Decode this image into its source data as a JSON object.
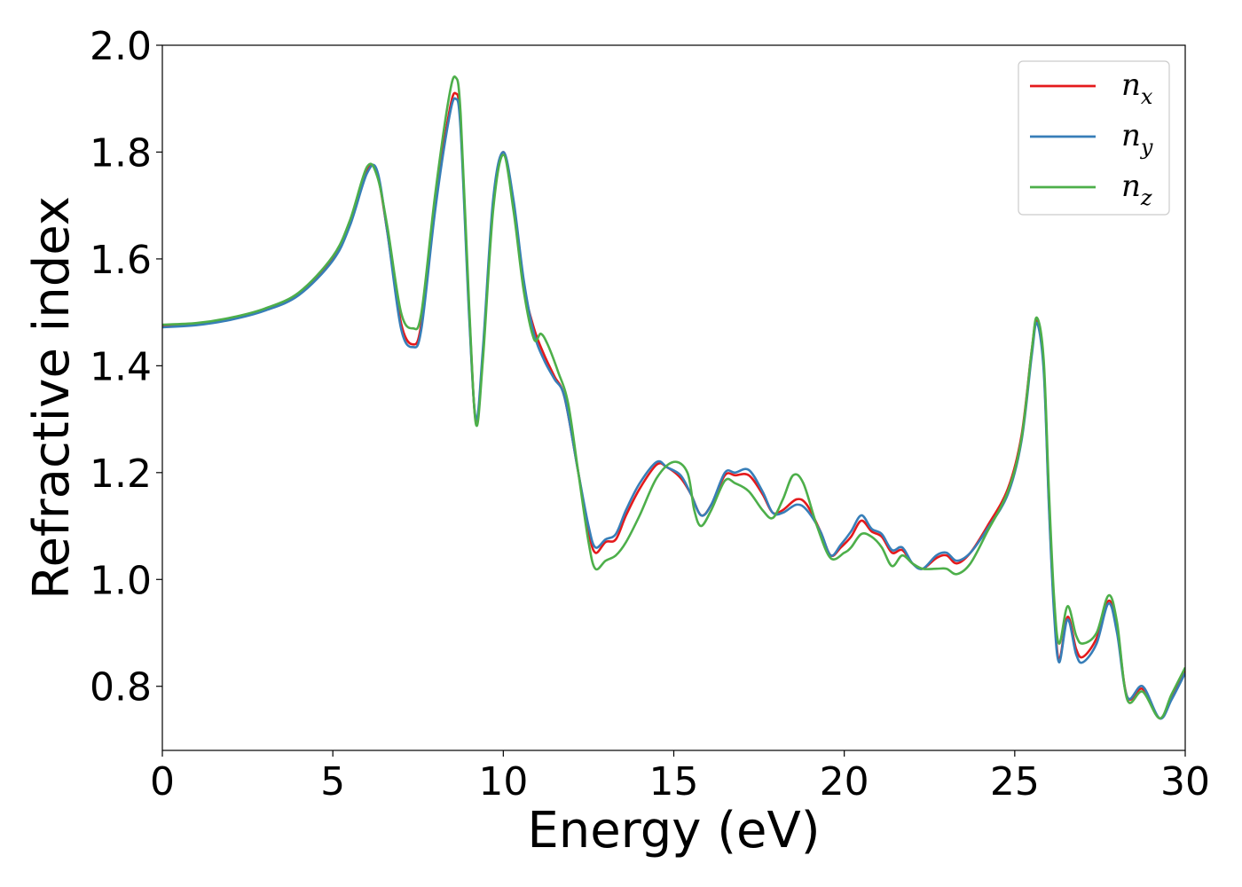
{
  "chart_data": {
    "type": "line",
    "title": "",
    "xlabel": "Energy (eV)",
    "ylabel": "Refractive index",
    "xlim": [
      0,
      30
    ],
    "ylim": [
      0.68,
      2.0
    ],
    "xticks": [
      0,
      5,
      10,
      15,
      20,
      25,
      30
    ],
    "yticks": [
      0.8,
      1.0,
      1.2,
      1.4,
      1.6,
      1.8,
      2.0
    ],
    "xtick_labels": [
      "0",
      "5",
      "10",
      "15",
      "20",
      "25",
      "30"
    ],
    "ytick_labels": [
      "0.8",
      "1.0",
      "1.2",
      "1.4",
      "1.6",
      "1.8",
      "2.0"
    ],
    "grid": false,
    "legend_position": "top-right",
    "series": [
      {
        "name": "n_x",
        "legend_main": "n",
        "legend_sub": "x",
        "color": "#e41a1c",
        "points": [
          [
            0,
            1.474
          ],
          [
            1,
            1.478
          ],
          [
            2,
            1.488
          ],
          [
            3,
            1.505
          ],
          [
            4,
            1.535
          ],
          [
            5,
            1.6
          ],
          [
            5.5,
            1.665
          ],
          [
            6,
            1.765
          ],
          [
            6.3,
            1.76
          ],
          [
            6.6,
            1.65
          ],
          [
            7,
            1.48
          ],
          [
            7.35,
            1.44
          ],
          [
            7.6,
            1.48
          ],
          [
            8.0,
            1.7
          ],
          [
            8.4,
            1.87
          ],
          [
            8.6,
            1.91
          ],
          [
            8.75,
            1.85
          ],
          [
            9.0,
            1.5
          ],
          [
            9.2,
            1.295
          ],
          [
            9.4,
            1.42
          ],
          [
            9.7,
            1.7
          ],
          [
            10.0,
            1.8
          ],
          [
            10.3,
            1.7
          ],
          [
            10.6,
            1.55
          ],
          [
            10.9,
            1.47
          ],
          [
            11.2,
            1.42
          ],
          [
            11.5,
            1.38
          ],
          [
            11.8,
            1.34
          ],
          [
            12.2,
            1.2
          ],
          [
            12.5,
            1.09
          ],
          [
            12.7,
            1.05
          ],
          [
            13.0,
            1.07
          ],
          [
            13.3,
            1.075
          ],
          [
            13.6,
            1.12
          ],
          [
            14.0,
            1.17
          ],
          [
            14.5,
            1.215
          ],
          [
            14.8,
            1.21
          ],
          [
            15.2,
            1.19
          ],
          [
            15.5,
            1.16
          ],
          [
            15.8,
            1.12
          ],
          [
            16.1,
            1.14
          ],
          [
            16.5,
            1.195
          ],
          [
            16.8,
            1.195
          ],
          [
            17.2,
            1.195
          ],
          [
            17.6,
            1.16
          ],
          [
            17.9,
            1.125
          ],
          [
            18.2,
            1.13
          ],
          [
            18.6,
            1.15
          ],
          [
            18.9,
            1.14
          ],
          [
            19.3,
            1.09
          ],
          [
            19.6,
            1.045
          ],
          [
            19.9,
            1.06
          ],
          [
            20.2,
            1.08
          ],
          [
            20.5,
            1.11
          ],
          [
            20.8,
            1.09
          ],
          [
            21.1,
            1.08
          ],
          [
            21.4,
            1.05
          ],
          [
            21.7,
            1.055
          ],
          [
            22.0,
            1.03
          ],
          [
            22.3,
            1.02
          ],
          [
            22.7,
            1.04
          ],
          [
            23.0,
            1.045
          ],
          [
            23.3,
            1.03
          ],
          [
            23.7,
            1.05
          ],
          [
            24.2,
            1.1
          ],
          [
            24.8,
            1.17
          ],
          [
            25.2,
            1.27
          ],
          [
            25.5,
            1.43
          ],
          [
            25.65,
            1.485
          ],
          [
            25.85,
            1.4
          ],
          [
            26.0,
            1.15
          ],
          [
            26.15,
            0.95
          ],
          [
            26.3,
            0.85
          ],
          [
            26.55,
            0.93
          ],
          [
            26.8,
            0.87
          ],
          [
            27.0,
            0.855
          ],
          [
            27.4,
            0.89
          ],
          [
            27.75,
            0.96
          ],
          [
            28.0,
            0.91
          ],
          [
            28.3,
            0.78
          ],
          [
            28.75,
            0.795
          ],
          [
            29.25,
            0.74
          ],
          [
            29.6,
            0.78
          ],
          [
            30,
            0.83
          ]
        ]
      },
      {
        "name": "n_y",
        "legend_main": "n",
        "legend_sub": "y",
        "color": "#377eb8",
        "points": [
          [
            0,
            1.472
          ],
          [
            1,
            1.476
          ],
          [
            2,
            1.486
          ],
          [
            3,
            1.503
          ],
          [
            4,
            1.532
          ],
          [
            5,
            1.597
          ],
          [
            5.5,
            1.662
          ],
          [
            6,
            1.76
          ],
          [
            6.3,
            1.765
          ],
          [
            6.6,
            1.65
          ],
          [
            7,
            1.47
          ],
          [
            7.35,
            1.435
          ],
          [
            7.6,
            1.47
          ],
          [
            8.0,
            1.69
          ],
          [
            8.4,
            1.86
          ],
          [
            8.6,
            1.9
          ],
          [
            8.75,
            1.84
          ],
          [
            9.0,
            1.49
          ],
          [
            9.2,
            1.3
          ],
          [
            9.4,
            1.43
          ],
          [
            9.7,
            1.71
          ],
          [
            10.0,
            1.8
          ],
          [
            10.3,
            1.71
          ],
          [
            10.6,
            1.56
          ],
          [
            10.9,
            1.46
          ],
          [
            11.2,
            1.41
          ],
          [
            11.5,
            1.375
          ],
          [
            11.8,
            1.34
          ],
          [
            12.2,
            1.2
          ],
          [
            12.5,
            1.1
          ],
          [
            12.7,
            1.06
          ],
          [
            13.0,
            1.075
          ],
          [
            13.3,
            1.085
          ],
          [
            13.6,
            1.13
          ],
          [
            14.0,
            1.18
          ],
          [
            14.5,
            1.22
          ],
          [
            14.8,
            1.21
          ],
          [
            15.2,
            1.195
          ],
          [
            15.5,
            1.16
          ],
          [
            15.8,
            1.12
          ],
          [
            16.1,
            1.14
          ],
          [
            16.5,
            1.2
          ],
          [
            16.8,
            1.2
          ],
          [
            17.2,
            1.205
          ],
          [
            17.6,
            1.165
          ],
          [
            17.9,
            1.125
          ],
          [
            18.2,
            1.125
          ],
          [
            18.6,
            1.14
          ],
          [
            18.9,
            1.13
          ],
          [
            19.3,
            1.09
          ],
          [
            19.6,
            1.045
          ],
          [
            19.9,
            1.065
          ],
          [
            20.2,
            1.09
          ],
          [
            20.5,
            1.12
          ],
          [
            20.8,
            1.095
          ],
          [
            21.1,
            1.085
          ],
          [
            21.4,
            1.055
          ],
          [
            21.7,
            1.06
          ],
          [
            22.0,
            1.03
          ],
          [
            22.3,
            1.02
          ],
          [
            22.7,
            1.045
          ],
          [
            23.0,
            1.05
          ],
          [
            23.3,
            1.035
          ],
          [
            23.7,
            1.05
          ],
          [
            24.2,
            1.095
          ],
          [
            24.8,
            1.16
          ],
          [
            25.2,
            1.26
          ],
          [
            25.5,
            1.42
          ],
          [
            25.65,
            1.48
          ],
          [
            25.85,
            1.39
          ],
          [
            26.0,
            1.14
          ],
          [
            26.15,
            0.94
          ],
          [
            26.3,
            0.845
          ],
          [
            26.55,
            0.925
          ],
          [
            26.8,
            0.86
          ],
          [
            27.0,
            0.845
          ],
          [
            27.4,
            0.88
          ],
          [
            27.75,
            0.955
          ],
          [
            28.0,
            0.9
          ],
          [
            28.3,
            0.78
          ],
          [
            28.75,
            0.8
          ],
          [
            29.25,
            0.74
          ],
          [
            29.6,
            0.775
          ],
          [
            30,
            0.825
          ]
        ]
      },
      {
        "name": "n_z",
        "legend_main": "n",
        "legend_sub": "z",
        "color": "#4daf4a",
        "points": [
          [
            0,
            1.477
          ],
          [
            1,
            1.48
          ],
          [
            2,
            1.49
          ],
          [
            3,
            1.507
          ],
          [
            4,
            1.537
          ],
          [
            5,
            1.605
          ],
          [
            5.5,
            1.672
          ],
          [
            6,
            1.772
          ],
          [
            6.3,
            1.755
          ],
          [
            6.6,
            1.66
          ],
          [
            7,
            1.5
          ],
          [
            7.35,
            1.47
          ],
          [
            7.6,
            1.5
          ],
          [
            8.0,
            1.72
          ],
          [
            8.4,
            1.9
          ],
          [
            8.6,
            1.94
          ],
          [
            8.75,
            1.87
          ],
          [
            9.0,
            1.51
          ],
          [
            9.2,
            1.29
          ],
          [
            9.4,
            1.41
          ],
          [
            9.7,
            1.69
          ],
          [
            10.0,
            1.795
          ],
          [
            10.3,
            1.69
          ],
          [
            10.6,
            1.54
          ],
          [
            10.9,
            1.45
          ],
          [
            11.1,
            1.46
          ],
          [
            11.3,
            1.44
          ],
          [
            11.6,
            1.39
          ],
          [
            11.9,
            1.33
          ],
          [
            12.2,
            1.2
          ],
          [
            12.5,
            1.07
          ],
          [
            12.7,
            1.02
          ],
          [
            13.0,
            1.035
          ],
          [
            13.3,
            1.045
          ],
          [
            13.6,
            1.07
          ],
          [
            14.0,
            1.12
          ],
          [
            14.5,
            1.19
          ],
          [
            15.0,
            1.22
          ],
          [
            15.4,
            1.2
          ],
          [
            15.6,
            1.13
          ],
          [
            15.8,
            1.1
          ],
          [
            16.1,
            1.13
          ],
          [
            16.5,
            1.185
          ],
          [
            16.8,
            1.18
          ],
          [
            17.2,
            1.165
          ],
          [
            17.6,
            1.13
          ],
          [
            17.9,
            1.115
          ],
          [
            18.2,
            1.15
          ],
          [
            18.5,
            1.195
          ],
          [
            18.8,
            1.18
          ],
          [
            19.2,
            1.1
          ],
          [
            19.6,
            1.04
          ],
          [
            20.0,
            1.05
          ],
          [
            20.2,
            1.06
          ],
          [
            20.5,
            1.085
          ],
          [
            20.8,
            1.08
          ],
          [
            21.1,
            1.06
          ],
          [
            21.4,
            1.025
          ],
          [
            21.7,
            1.045
          ],
          [
            22.0,
            1.03
          ],
          [
            22.3,
            1.02
          ],
          [
            22.7,
            1.02
          ],
          [
            23.0,
            1.02
          ],
          [
            23.3,
            1.01
          ],
          [
            23.7,
            1.03
          ],
          [
            24.2,
            1.09
          ],
          [
            24.8,
            1.165
          ],
          [
            25.2,
            1.265
          ],
          [
            25.5,
            1.43
          ],
          [
            25.65,
            1.49
          ],
          [
            25.85,
            1.41
          ],
          [
            26.0,
            1.17
          ],
          [
            26.15,
            0.97
          ],
          [
            26.3,
            0.88
          ],
          [
            26.55,
            0.95
          ],
          [
            26.8,
            0.895
          ],
          [
            27.0,
            0.88
          ],
          [
            27.4,
            0.9
          ],
          [
            27.75,
            0.97
          ],
          [
            28.0,
            0.92
          ],
          [
            28.3,
            0.775
          ],
          [
            28.75,
            0.79
          ],
          [
            29.25,
            0.74
          ],
          [
            29.6,
            0.785
          ],
          [
            30,
            0.835
          ]
        ]
      }
    ]
  }
}
